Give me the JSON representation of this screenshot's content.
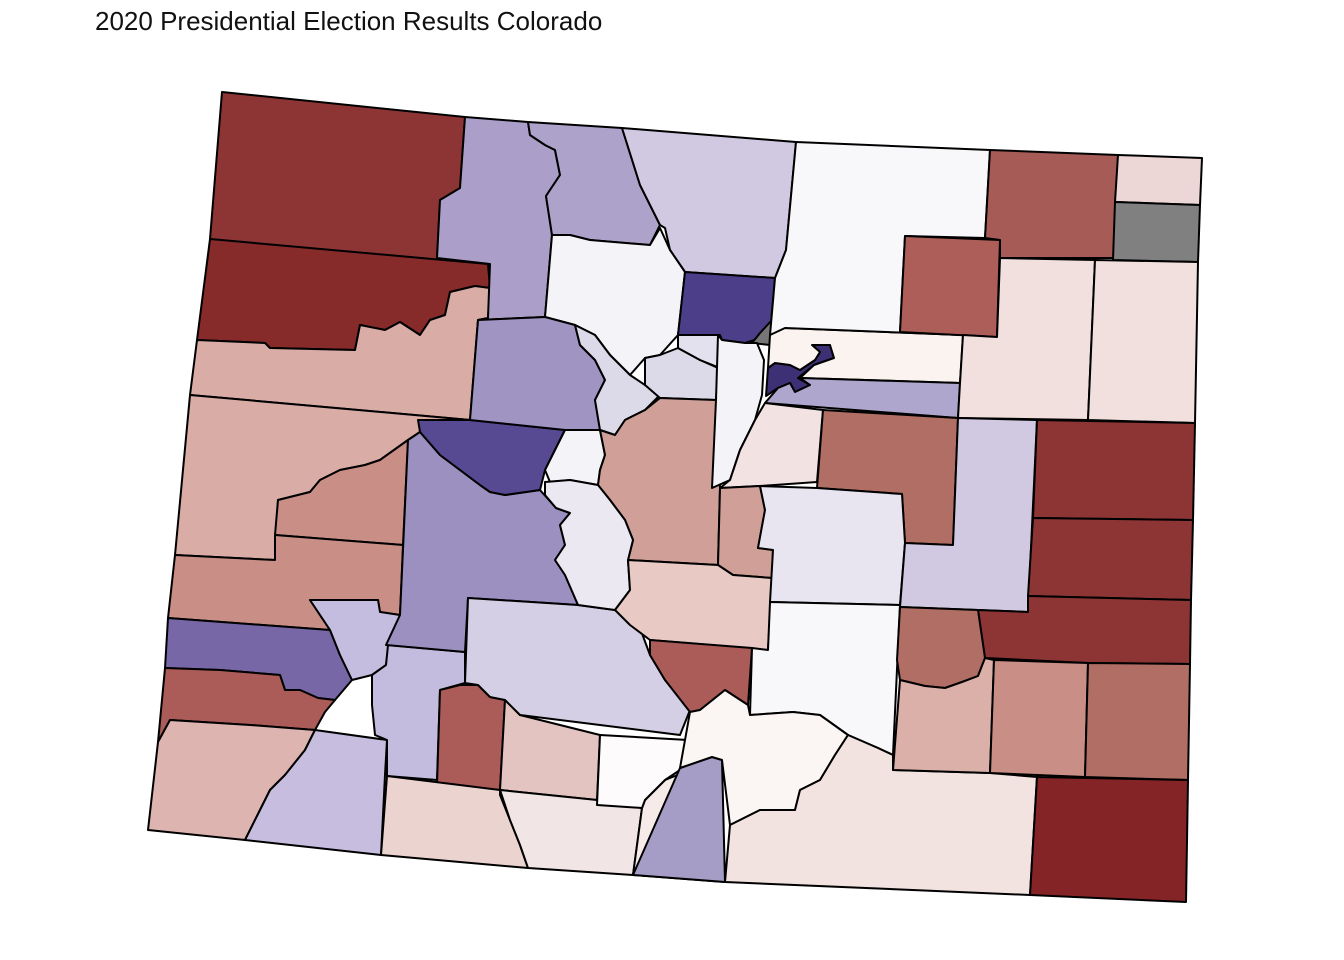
{
  "title": "2020 Presidential Election Results Colorado",
  "colors": {
    "no_data": "#808080",
    "border": "#000000"
  },
  "counties": [
    {
      "id": "moffat",
      "fill": "#8d3535"
    },
    {
      "id": "rio-blanco",
      "fill": "#862a2a"
    },
    {
      "id": "garfield",
      "fill": "#d9aca6"
    },
    {
      "id": "mesa",
      "fill": "#d9aca6"
    },
    {
      "id": "delta",
      "fill": "#c98f87"
    },
    {
      "id": "montrose",
      "fill": "#c98f87"
    },
    {
      "id": "san-miguel",
      "fill": "#7767a7"
    },
    {
      "id": "dolores",
      "fill": "#ab5c59"
    },
    {
      "id": "montezuma",
      "fill": "#ddb4b0"
    },
    {
      "id": "la-plata",
      "fill": "#c7bedf"
    },
    {
      "id": "ouray",
      "fill": "#c5bddf"
    },
    {
      "id": "san-juan",
      "fill": "#c4bcde"
    },
    {
      "id": "hinsdale",
      "fill": "#ab5c59"
    },
    {
      "id": "archuleta",
      "fill": "#ebd3d0"
    },
    {
      "id": "mineral",
      "fill": "#e3c4c0"
    },
    {
      "id": "rio-grande",
      "fill": "#f2e5e5"
    },
    {
      "id": "conejos",
      "fill": "#f6ebe9"
    },
    {
      "id": "alamosa",
      "fill": "#fdfbfb"
    },
    {
      "id": "costilla",
      "fill": "#a69dc6"
    },
    {
      "id": "gunnison",
      "fill": "#9c90c1"
    },
    {
      "id": "pitkin",
      "fill": "#574a93"
    },
    {
      "id": "saguache",
      "fill": "#d4cfe4"
    },
    {
      "id": "routt",
      "fill": "#ab9fc9"
    },
    {
      "id": "jackson",
      "fill": "#ada3ca"
    },
    {
      "id": "larimer",
      "fill": "#d0c9e1"
    },
    {
      "id": "grand",
      "fill": "#f4f3f8"
    },
    {
      "id": "eagle",
      "fill": "#a094c3"
    },
    {
      "id": "summit",
      "fill": "#dcd9e9"
    },
    {
      "id": "lake",
      "fill": "#f4f3f8"
    },
    {
      "id": "clear-creek",
      "fill": "#dcd9e9"
    },
    {
      "id": "gilpin",
      "fill": "#e3e1ee"
    },
    {
      "id": "park",
      "fill": "#cf9f98"
    },
    {
      "id": "chaffee",
      "fill": "#ebe8f2"
    },
    {
      "id": "boulder",
      "fill": "#4c3e89"
    },
    {
      "id": "broomfield",
      "fill": "#767676"
    },
    {
      "id": "jefferson",
      "fill": "#f4f4f8"
    },
    {
      "id": "denver",
      "fill": "#3d3075"
    },
    {
      "id": "adams",
      "fill": "#fbf3f0"
    },
    {
      "id": "arapahoe",
      "fill": "#aea6cd"
    },
    {
      "id": "douglas",
      "fill": "#f2e3e2"
    },
    {
      "id": "elbert",
      "fill": "#b06e65"
    },
    {
      "id": "teller",
      "fill": "#cf9f98"
    },
    {
      "id": "fremont",
      "fill": "#e8c9c4"
    },
    {
      "id": "custer",
      "fill": "#ab5c59"
    },
    {
      "id": "el-paso",
      "fill": "#e8e5f1"
    },
    {
      "id": "pueblo",
      "fill": "#f8f7fa"
    },
    {
      "id": "huerfano",
      "fill": "#fbf5f4"
    },
    {
      "id": "las-animas",
      "fill": "#f2e2e0"
    },
    {
      "id": "weld",
      "fill": "#f8f8fb"
    },
    {
      "id": "morgan",
      "fill": "#ae5e59"
    },
    {
      "id": "logan",
      "fill": "#a75b56"
    },
    {
      "id": "sedgwick",
      "fill": "#ecd7d6"
    },
    {
      "id": "phillips",
      "fill": "#808080"
    },
    {
      "id": "washington",
      "fill": "#f2e0de"
    },
    {
      "id": "yuma",
      "fill": "#f2e0de"
    },
    {
      "id": "lincoln",
      "fill": "#d0c9e1"
    },
    {
      "id": "kit-carson",
      "fill": "#8d3535"
    },
    {
      "id": "cheyenne",
      "fill": "#8d3535"
    },
    {
      "id": "kiowa",
      "fill": "#8d3535"
    },
    {
      "id": "crowley",
      "fill": "#b06e65"
    },
    {
      "id": "otero",
      "fill": "#dbb0a8"
    },
    {
      "id": "bent",
      "fill": "#c98f87"
    },
    {
      "id": "prowers",
      "fill": "#b06e65"
    },
    {
      "id": "baca",
      "fill": "#852426"
    }
  ]
}
